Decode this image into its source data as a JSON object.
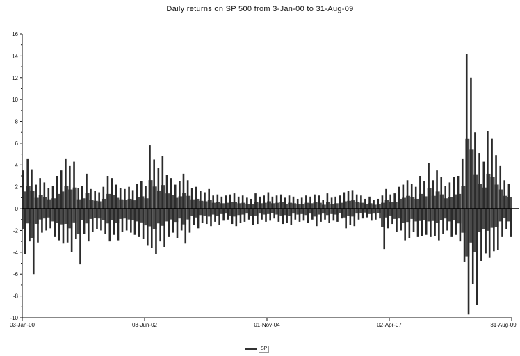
{
  "chart_data": {
    "type": "bar",
    "title": "Daily returns on SP 500 from 3-Jan-00 to 31-Aug-09",
    "xlabel": "",
    "ylabel": "",
    "ylim": [
      -10,
      16
    ],
    "yticks": [
      -10,
      -8,
      -6,
      -4,
      -2,
      0,
      2,
      4,
      6,
      8,
      10,
      12,
      14,
      16
    ],
    "xtick_labels": [
      "03-Jan-00",
      "03-Jun-02",
      "01-Nov-04",
      "02-Apr-07",
      "31-Aug-09"
    ],
    "x_range": [
      "2000-01-03",
      "2009-08-31"
    ],
    "grid": false,
    "legend": "bottom-center",
    "series": [
      {
        "name": "SP",
        "color": "#2b2b2b",
        "x": [
          "2000-01",
          "2000-02",
          "2000-03",
          "2000-04",
          "2000-05",
          "2000-06",
          "2000-07",
          "2000-08",
          "2000-09",
          "2000-10",
          "2000-11",
          "2000-12",
          "2001-01",
          "2001-02",
          "2001-03",
          "2001-04",
          "2001-05",
          "2001-06",
          "2001-07",
          "2001-08",
          "2001-09",
          "2001-10",
          "2001-11",
          "2001-12",
          "2002-01",
          "2002-02",
          "2002-03",
          "2002-04",
          "2002-05",
          "2002-06",
          "2002-07",
          "2002-08",
          "2002-09",
          "2002-10",
          "2002-11",
          "2002-12",
          "2003-01",
          "2003-02",
          "2003-03",
          "2003-04",
          "2003-05",
          "2003-06",
          "2003-07",
          "2003-08",
          "2003-09",
          "2003-10",
          "2003-11",
          "2003-12",
          "2004-01",
          "2004-02",
          "2004-03",
          "2004-04",
          "2004-05",
          "2004-06",
          "2004-07",
          "2004-08",
          "2004-09",
          "2004-10",
          "2004-11",
          "2004-12",
          "2005-01",
          "2005-02",
          "2005-03",
          "2005-04",
          "2005-05",
          "2005-06",
          "2005-07",
          "2005-08",
          "2005-09",
          "2005-10",
          "2005-11",
          "2005-12",
          "2006-01",
          "2006-02",
          "2006-03",
          "2006-04",
          "2006-05",
          "2006-06",
          "2006-07",
          "2006-08",
          "2006-09",
          "2006-10",
          "2006-11",
          "2006-12",
          "2007-01",
          "2007-02",
          "2007-03",
          "2007-04",
          "2007-05",
          "2007-06",
          "2007-07",
          "2007-08",
          "2007-09",
          "2007-10",
          "2007-11",
          "2007-12",
          "2008-01",
          "2008-02",
          "2008-03",
          "2008-04",
          "2008-05",
          "2008-06",
          "2008-07",
          "2008-08",
          "2008-09",
          "2008-10",
          "2008-11",
          "2008-12",
          "2009-01",
          "2009-02",
          "2009-03",
          "2009-04",
          "2009-05",
          "2009-06",
          "2009-07",
          "2009-08"
        ],
        "max": [
          3.5,
          4.6,
          3.6,
          2.2,
          2.8,
          2.4,
          1.9,
          2.1,
          3.0,
          3.5,
          4.6,
          3.9,
          4.3,
          1.9,
          2.1,
          3.2,
          1.8,
          1.6,
          1.5,
          2.0,
          3.0,
          2.8,
          2.2,
          1.9,
          1.8,
          2.0,
          1.7,
          2.3,
          2.5,
          2.1,
          5.8,
          4.5,
          3.7,
          4.8,
          3.1,
          2.8,
          2.2,
          2.5,
          3.2,
          2.6,
          1.9,
          2.0,
          1.6,
          1.5,
          1.8,
          1.2,
          1.3,
          1.1,
          1.2,
          1.3,
          1.4,
          1.1,
          1.2,
          1.0,
          0.9,
          1.4,
          1.1,
          1.2,
          1.5,
          1.1,
          1.2,
          1.3,
          1.0,
          1.2,
          1.1,
          0.9,
          1.0,
          1.2,
          1.1,
          1.3,
          1.2,
          0.8,
          1.4,
          1.0,
          1.1,
          1.2,
          1.5,
          1.6,
          1.7,
          1.3,
          1.2,
          0.9,
          1.1,
          0.8,
          0.9,
          1.2,
          1.8,
          1.3,
          1.4,
          2.0,
          2.2,
          2.6,
          2.3,
          2.0,
          3.0,
          2.5,
          4.2,
          2.6,
          3.5,
          2.9,
          2.1,
          2.4,
          2.9,
          3.0,
          4.6,
          14.2,
          12.0,
          7.0,
          5.1,
          4.3,
          7.1,
          6.4,
          4.9,
          3.9,
          2.6,
          2.3
        ],
        "min": [
          -4.2,
          -3.0,
          -6.0,
          -3.1,
          -2.2,
          -2.0,
          -1.8,
          -2.6,
          -2.9,
          -3.2,
          -3.1,
          -4.0,
          -2.8,
          -5.1,
          -2.3,
          -3.0,
          -2.1,
          -1.9,
          -2.0,
          -2.3,
          -3.0,
          -2.4,
          -2.9,
          -2.1,
          -2.0,
          -2.2,
          -2.4,
          -2.6,
          -2.8,
          -3.4,
          -3.6,
          -4.2,
          -3.0,
          -3.5,
          -2.6,
          -2.2,
          -2.7,
          -2.0,
          -3.2,
          -2.2,
          -1.5,
          -1.8,
          -1.3,
          -1.4,
          -1.6,
          -1.2,
          -1.5,
          -1.1,
          -1.0,
          -1.4,
          -1.6,
          -1.3,
          -1.2,
          -1.0,
          -1.5,
          -1.4,
          -1.0,
          -1.2,
          -1.1,
          -0.9,
          -1.2,
          -1.4,
          -1.3,
          -1.5,
          -1.0,
          -1.2,
          -1.1,
          -1.3,
          -1.0,
          -1.6,
          -1.2,
          -1.0,
          -1.3,
          -1.1,
          -1.2,
          -0.9,
          -1.8,
          -1.5,
          -1.6,
          -1.0,
          -0.9,
          -0.8,
          -1.1,
          -1.0,
          -0.9,
          -3.7,
          -1.8,
          -1.4,
          -2.1,
          -2.0,
          -2.9,
          -2.7,
          -2.1,
          -2.6,
          -2.5,
          -2.4,
          -2.6,
          -2.5,
          -2.9,
          -2.3,
          -2.0,
          -2.6,
          -2.4,
          -3.0,
          -4.9,
          -9.7,
          -6.9,
          -8.8,
          -4.8,
          -4.1,
          -4.5,
          -3.9,
          -3.8,
          -2.6,
          -1.9,
          -2.6
        ]
      }
    ]
  }
}
